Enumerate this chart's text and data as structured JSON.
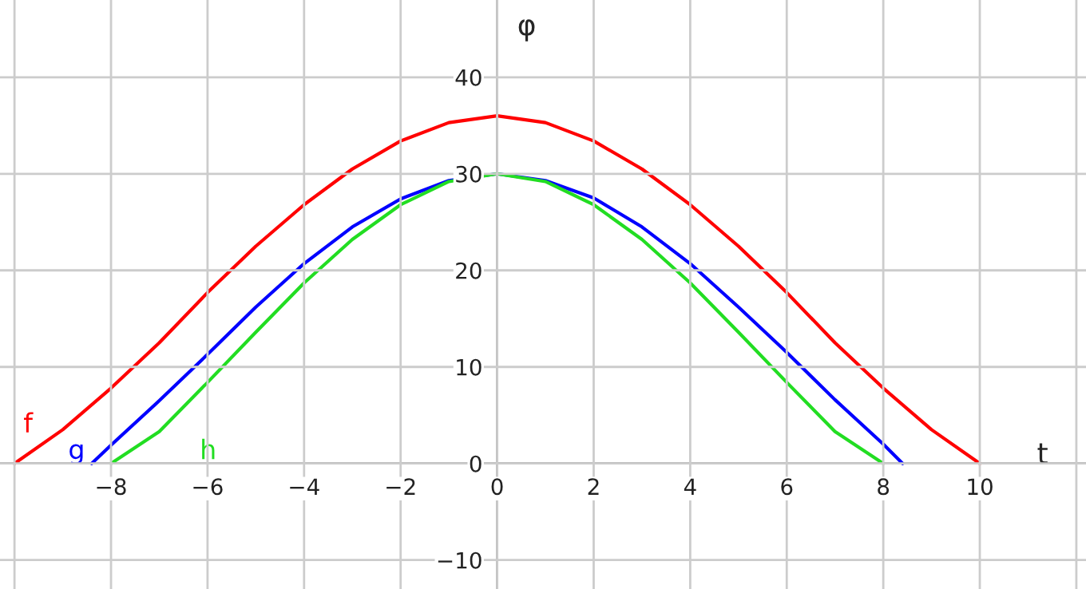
{
  "chart_data": {
    "type": "line",
    "xlabel": "t",
    "ylabel": "φ",
    "series": [
      {
        "name": "f",
        "color": "#ff0000",
        "x": [
          -10,
          -9,
          -8,
          -7,
          -6,
          -5,
          -4,
          -3,
          -2,
          -1,
          0,
          1,
          2,
          3,
          4,
          5,
          6,
          7,
          8,
          9,
          10
        ],
        "values": [
          0,
          3.5,
          7.8,
          12.5,
          17.7,
          22.5,
          26.8,
          30.5,
          33.4,
          35.3,
          36,
          35.3,
          33.4,
          30.5,
          26.8,
          22.5,
          17.7,
          12.5,
          7.8,
          3.5,
          0
        ]
      },
      {
        "name": "g",
        "color": "#0000ff",
        "x": [
          -8.4,
          -8,
          -7,
          -6,
          -5,
          -4,
          -3,
          -2,
          -1,
          0,
          1,
          2,
          3,
          4,
          5,
          6,
          7,
          8,
          8.4
        ],
        "values": [
          0,
          1.9,
          6.5,
          11.3,
          16.2,
          20.7,
          24.5,
          27.4,
          29.3,
          30,
          29.3,
          27.5,
          24.5,
          20.7,
          16.2,
          11.5,
          6.6,
          2.0,
          0
        ]
      },
      {
        "name": "h",
        "color": "#22dd22",
        "x": [
          -8,
          -7,
          -6,
          -5,
          -4,
          -3,
          -2,
          -1,
          0,
          1,
          2,
          3,
          4,
          5,
          6,
          7,
          8
        ],
        "values": [
          0,
          3.3,
          8.4,
          13.6,
          18.7,
          23.2,
          26.8,
          29.2,
          30,
          29.2,
          26.8,
          23.2,
          18.7,
          13.6,
          8.4,
          3.3,
          0
        ]
      }
    ],
    "xlim": [
      -10.3,
      12.2
    ],
    "ylim": [
      -13,
      48
    ],
    "xticks": [
      {
        "value": -10,
        "label": null
      },
      -8,
      -6,
      -4,
      -2,
      0,
      2,
      4,
      6,
      8,
      10,
      {
        "value": 12,
        "label": null
      }
    ],
    "yticks": [
      -10,
      0,
      10,
      20,
      30,
      40
    ],
    "grid": true,
    "legend": false,
    "marker": "none",
    "line_style": "solid"
  }
}
